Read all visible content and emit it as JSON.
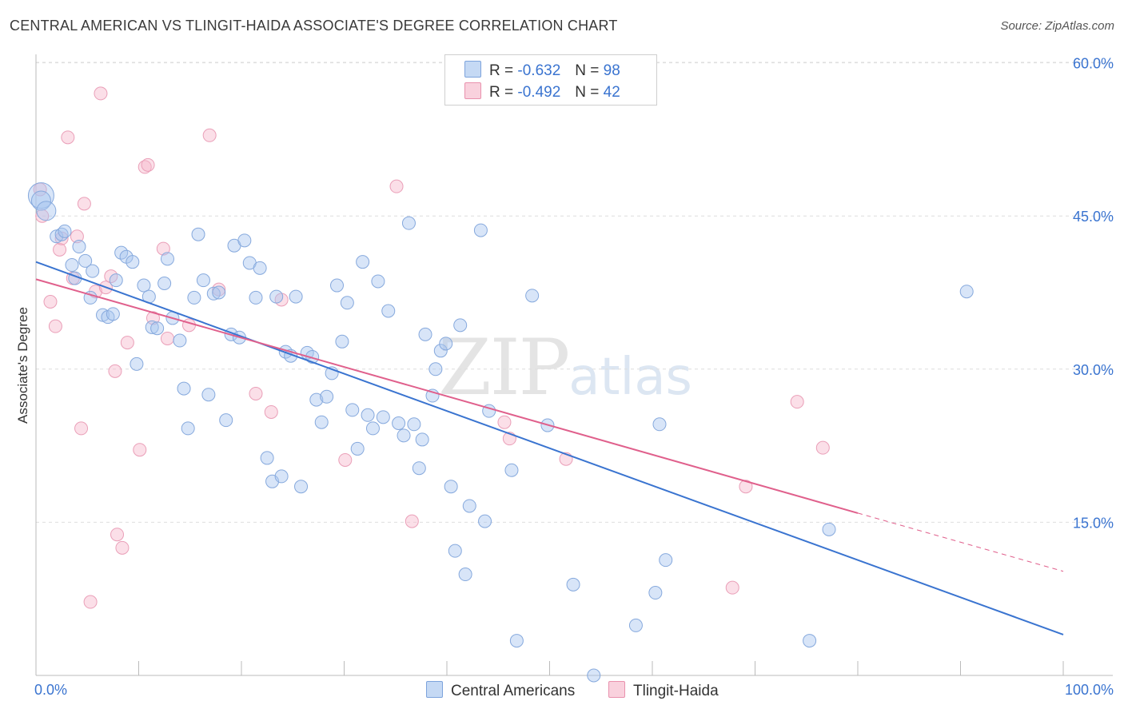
{
  "title": "CENTRAL AMERICAN VS TLINGIT-HAIDA ASSOCIATE'S DEGREE CORRELATION CHART",
  "source": "Source: ZipAtlas.com",
  "watermark": {
    "zip": "ZIP",
    "atlas": "atlas"
  },
  "legend": {
    "rows": [
      {
        "r_label": "R =",
        "r_value": "-0.632",
        "n_label": "N =",
        "n_value": "98",
        "color": "#a8c6f0"
      },
      {
        "r_label": "R =",
        "r_value": "-0.492",
        "n_label": "N =",
        "n_value": "42",
        "color": "#f6b8cb"
      }
    ]
  },
  "bottom_legend": [
    {
      "label": "Central Americans",
      "color": "#a8c6f0"
    },
    {
      "label": "Tlingit-Haida",
      "color": "#f6b8cb"
    }
  ],
  "colors": {
    "blue": "#3a74d0",
    "pink": "#e0608c",
    "blue_fill": "#a8c6f0",
    "pink_fill": "#f6b8cb",
    "tick_text": "#3a74d0"
  },
  "chart_data": {
    "type": "scatter",
    "title": "CENTRAL AMERICAN VS TLINGIT-HAIDA ASSOCIATE'S DEGREE CORRELATION CHART",
    "xlabel": "",
    "ylabel": "Associate's Degree",
    "xlim": [
      0,
      100
    ],
    "ylim": [
      0,
      65
    ],
    "x_tick_labels": [
      "0.0%",
      "100.0%"
    ],
    "y_ticks": [
      15,
      30,
      45,
      60
    ],
    "y_tick_labels": [
      "15.0%",
      "30.0%",
      "45.0%",
      "60.0%"
    ],
    "grid": true,
    "legend_position": "top-center",
    "series": [
      {
        "name": "Central Americans",
        "color": "#3a74d0",
        "points": [
          [
            0.5,
            47.0
          ],
          [
            0.5,
            46.5
          ],
          [
            1.0,
            45.5
          ],
          [
            2.0,
            43.0
          ],
          [
            2.5,
            43.2
          ],
          [
            2.8,
            43.5
          ],
          [
            3.5,
            40.2
          ],
          [
            3.8,
            38.9
          ],
          [
            4.2,
            42.0
          ],
          [
            4.8,
            40.6
          ],
          [
            5.5,
            39.6
          ],
          [
            5.3,
            37.0
          ],
          [
            6.5,
            35.3
          ],
          [
            7.0,
            35.1
          ],
          [
            7.5,
            35.4
          ],
          [
            7.8,
            38.7
          ],
          [
            8.3,
            41.4
          ],
          [
            8.8,
            41.0
          ],
          [
            9.4,
            40.5
          ],
          [
            9.8,
            30.5
          ],
          [
            10.5,
            38.2
          ],
          [
            11.0,
            37.1
          ],
          [
            11.3,
            34.1
          ],
          [
            11.8,
            34.0
          ],
          [
            12.5,
            38.4
          ],
          [
            12.8,
            40.8
          ],
          [
            13.3,
            35.0
          ],
          [
            14.0,
            32.8
          ],
          [
            14.4,
            28.1
          ],
          [
            14.8,
            24.2
          ],
          [
            15.4,
            37.0
          ],
          [
            15.8,
            43.2
          ],
          [
            16.3,
            38.7
          ],
          [
            16.8,
            27.5
          ],
          [
            17.3,
            37.4
          ],
          [
            17.8,
            37.5
          ],
          [
            18.5,
            25.0
          ],
          [
            19.0,
            33.4
          ],
          [
            19.3,
            42.1
          ],
          [
            19.8,
            33.1
          ],
          [
            20.3,
            42.6
          ],
          [
            20.8,
            40.4
          ],
          [
            21.4,
            37.0
          ],
          [
            21.8,
            39.9
          ],
          [
            22.5,
            21.3
          ],
          [
            23.0,
            19.0
          ],
          [
            23.4,
            37.1
          ],
          [
            23.9,
            19.5
          ],
          [
            24.3,
            31.7
          ],
          [
            24.8,
            31.3
          ],
          [
            25.3,
            37.1
          ],
          [
            25.8,
            18.5
          ],
          [
            26.4,
            31.6
          ],
          [
            26.9,
            31.2
          ],
          [
            27.3,
            27.0
          ],
          [
            27.8,
            24.8
          ],
          [
            28.3,
            27.3
          ],
          [
            28.8,
            29.6
          ],
          [
            29.3,
            38.2
          ],
          [
            29.8,
            32.7
          ],
          [
            30.3,
            36.5
          ],
          [
            30.8,
            26.0
          ],
          [
            31.3,
            22.2
          ],
          [
            31.8,
            40.5
          ],
          [
            32.3,
            25.5
          ],
          [
            32.8,
            24.2
          ],
          [
            33.3,
            38.6
          ],
          [
            33.8,
            25.3
          ],
          [
            34.3,
            35.7
          ],
          [
            35.3,
            24.7
          ],
          [
            35.8,
            23.5
          ],
          [
            36.3,
            44.3
          ],
          [
            36.8,
            24.6
          ],
          [
            37.3,
            20.3
          ],
          [
            37.6,
            23.1
          ],
          [
            37.9,
            33.4
          ],
          [
            38.6,
            27.4
          ],
          [
            38.9,
            30.0
          ],
          [
            39.4,
            31.8
          ],
          [
            39.9,
            32.5
          ],
          [
            40.8,
            12.2
          ],
          [
            40.4,
            18.5
          ],
          [
            41.8,
            9.9
          ],
          [
            41.3,
            34.3
          ],
          [
            42.2,
            16.6
          ],
          [
            43.3,
            43.6
          ],
          [
            43.7,
            15.1
          ],
          [
            44.1,
            25.9
          ],
          [
            46.3,
            20.1
          ],
          [
            46.8,
            3.4
          ],
          [
            48.3,
            37.2
          ],
          [
            49.8,
            24.5
          ],
          [
            52.3,
            8.9
          ],
          [
            54.3,
            0.0
          ],
          [
            58.4,
            4.9
          ],
          [
            60.3,
            8.1
          ],
          [
            60.7,
            24.6
          ],
          [
            61.3,
            11.3
          ],
          [
            75.3,
            3.4
          ],
          [
            77.2,
            14.3
          ],
          [
            90.6,
            37.6
          ]
        ],
        "sizes_note": "first three points drawn as large bubbles",
        "trend_line": {
          "x": [
            0,
            100
          ],
          "y": [
            40.5,
            4.0
          ]
        }
      },
      {
        "name": "Tlingit-Haida",
        "color": "#e0608c",
        "points": [
          [
            0.4,
            47.6
          ],
          [
            0.6,
            45.0
          ],
          [
            1.4,
            36.6
          ],
          [
            1.9,
            34.2
          ],
          [
            2.3,
            41.7
          ],
          [
            2.5,
            42.8
          ],
          [
            3.1,
            52.7
          ],
          [
            3.6,
            38.9
          ],
          [
            4.0,
            43.0
          ],
          [
            4.4,
            24.2
          ],
          [
            4.7,
            46.2
          ],
          [
            5.3,
            7.2
          ],
          [
            5.8,
            37.6
          ],
          [
            6.3,
            57.0
          ],
          [
            6.8,
            38.0
          ],
          [
            7.3,
            39.1
          ],
          [
            7.7,
            29.8
          ],
          [
            7.9,
            13.8
          ],
          [
            8.4,
            12.5
          ],
          [
            8.9,
            32.6
          ],
          [
            10.1,
            22.1
          ],
          [
            10.6,
            49.8
          ],
          [
            10.9,
            50.0
          ],
          [
            11.4,
            35.0
          ],
          [
            12.4,
            41.8
          ],
          [
            12.8,
            33.0
          ],
          [
            14.9,
            34.3
          ],
          [
            16.9,
            52.9
          ],
          [
            17.8,
            37.8
          ],
          [
            21.4,
            27.6
          ],
          [
            22.9,
            25.8
          ],
          [
            23.9,
            36.8
          ],
          [
            30.1,
            21.1
          ],
          [
            35.1,
            47.9
          ],
          [
            36.6,
            15.1
          ],
          [
            45.6,
            24.8
          ],
          [
            46.1,
            23.2
          ],
          [
            51.6,
            21.2
          ],
          [
            67.8,
            8.6
          ],
          [
            69.1,
            18.5
          ],
          [
            74.1,
            26.8
          ],
          [
            76.6,
            22.3
          ]
        ],
        "trend_line": {
          "x": [
            0,
            80
          ],
          "y": [
            38.8,
            15.9
          ]
        },
        "trend_line_dashed": {
          "x": [
            80,
            100
          ],
          "y": [
            15.9,
            10.2
          ]
        }
      }
    ]
  }
}
